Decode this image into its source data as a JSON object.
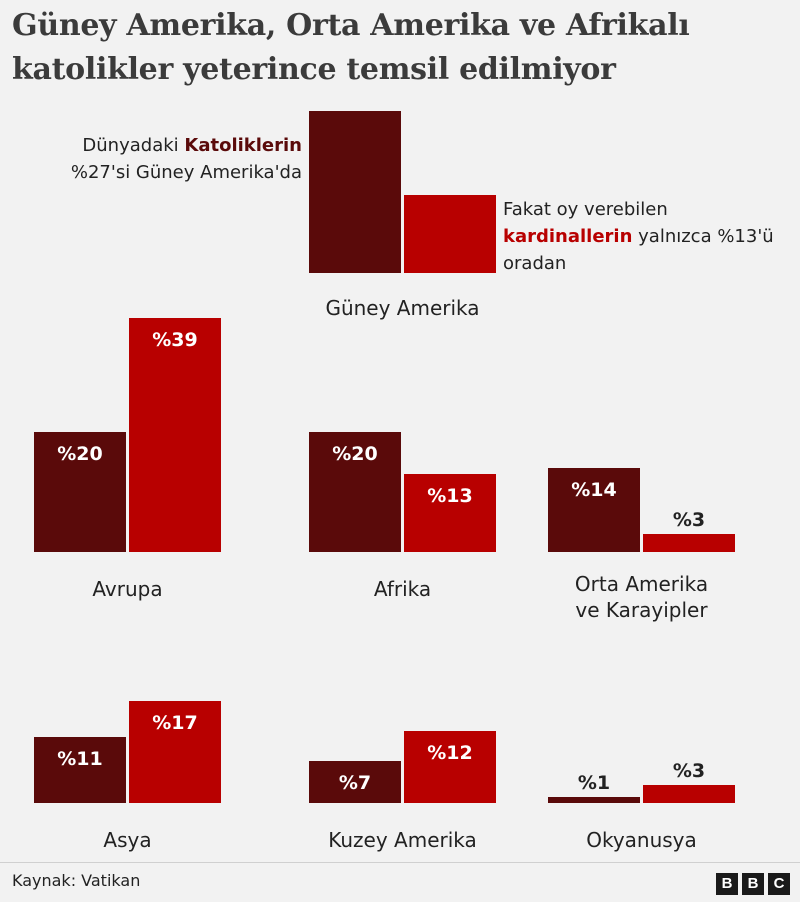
{
  "title": "Güney Amerika, Orta Amerika ve Afrikalı katolikler yeterince temsil edilmiyor",
  "colors": {
    "catholics": "#5a0a0a",
    "cardinals": "#b80000",
    "background": "#f2f2f2"
  },
  "notes": {
    "left_prefix": "Dünyadaki ",
    "left_bold": "Katoliklerin",
    "left_suffix": " %27'si Güney Amerika'da",
    "right_prefix": "Fakat oy verebilen ",
    "right_bold": "kardinallerin",
    "right_suffix": " yalnızca %13'ü oradan"
  },
  "source": "Kaynak: Vatikan",
  "logo": [
    "B",
    "B",
    "C"
  ],
  "chart_data": {
    "type": "bar",
    "series": [
      {
        "key": "catholics",
        "color": "#5a0a0a"
      },
      {
        "key": "cardinals",
        "color": "#b80000"
      }
    ],
    "unit_prefix": "%",
    "groups": [
      {
        "name": "Güney Amerika",
        "label_lines": [
          "Güney Amerika"
        ],
        "values": [
          27,
          13
        ],
        "show_value_labels": false
      },
      {
        "name": "Avrupa",
        "label_lines": [
          "Avrupa"
        ],
        "values": [
          20,
          39
        ],
        "show_value_labels": true
      },
      {
        "name": "Afrika",
        "label_lines": [
          "Afrika"
        ],
        "values": [
          20,
          13
        ],
        "show_value_labels": true
      },
      {
        "name": "Orta Amerika ve Karayipler",
        "label_lines": [
          "Orta Amerika",
          "ve Karayipler"
        ],
        "values": [
          14,
          3
        ],
        "show_value_labels": true
      },
      {
        "name": "Asya",
        "label_lines": [
          "Asya"
        ],
        "values": [
          11,
          17
        ],
        "show_value_labels": true
      },
      {
        "name": "Kuzey Amerika",
        "label_lines": [
          "Kuzey Amerika"
        ],
        "values": [
          7,
          12
        ],
        "show_value_labels": true
      },
      {
        "name": "Okyanusya",
        "label_lines": [
          "Okyanusya"
        ],
        "values": [
          1,
          3
        ],
        "show_value_labels": true
      }
    ]
  }
}
